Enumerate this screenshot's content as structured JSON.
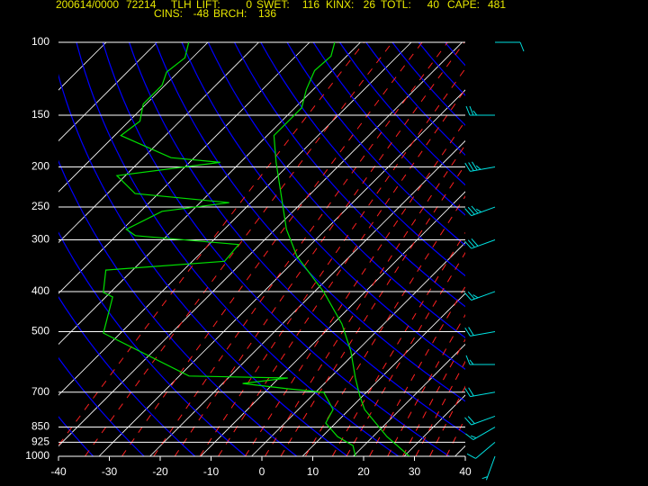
{
  "header": {
    "time": "200614/0000",
    "station_id": "72214",
    "station": "TLH",
    "indices": [
      {
        "label": "LIFT:",
        "value": 0
      },
      {
        "label": "SWET:",
        "value": 116
      },
      {
        "label": "KINX:",
        "value": 26
      },
      {
        "label": "TOTL:",
        "value": 40
      },
      {
        "label": "CAPE:",
        "value": 481
      },
      {
        "label": "CINS:",
        "value": -48
      },
      {
        "label": "BRCH:",
        "value": 136
      }
    ]
  },
  "chart_data": {
    "type": "skewt",
    "xlim": [
      -40,
      40
    ],
    "xticks": [
      -40,
      -30,
      -20,
      -10,
      0,
      10,
      20,
      30,
      40
    ],
    "ylim": [
      1000,
      100
    ],
    "yticks": [
      100,
      150,
      200,
      250,
      300,
      400,
      500,
      700,
      850,
      925,
      1000
    ],
    "log_scale": true,
    "series": [
      {
        "color": "#00e000",
        "pressure": [
          1000,
          896,
          771,
          715,
          647,
          557,
          479,
          402,
          329,
          283,
          195,
          168,
          144,
          130,
          117,
          108,
          100
        ],
        "temperature": [
          29.0,
          20.7,
          11.0,
          7.4,
          3.0,
          -3.2,
          -10.3,
          -20.0,
          -32.4,
          -39.8,
          -55.0,
          -60.7,
          -60.7,
          -63.4,
          -65.5,
          -65.1,
          -67.1
        ]
      },
      {
        "color": "#00e000",
        "pressure": [
          1000,
          942,
          896,
          831,
          771,
          701,
          687,
          667,
          647,
          640,
          504,
          412,
          402,
          355,
          338,
          308,
          293,
          283,
          256,
          244,
          232,
          210,
          195,
          190,
          168,
          155,
          141,
          127,
          118,
          109,
          100
        ],
        "temperature": [
          18.4,
          15.8,
          11.0,
          6.0,
          4.8,
          -0.4,
          -8.1,
          -18.1,
          -10.3,
          -30.1,
          -55.4,
          -60.7,
          -63.4,
          -67.3,
          -45.7,
          -46.2,
          -68.3,
          -71.3,
          -67.8,
          -56.3,
          -76.6,
          -83.7,
          -66.0,
          -76.6,
          -90.8,
          -89.9,
          -92.6,
          -92.6,
          -94.3,
          -93.5,
          -95.8
        ]
      }
    ],
    "winds": {
      "color": "#00e0e0",
      "pressure": [
        1000,
        925,
        850,
        800,
        700,
        600,
        500,
        400,
        300,
        250,
        200,
        150,
        100
      ],
      "direction": [
        200,
        230,
        240,
        250,
        260,
        270,
        260,
        250,
        250,
        250,
        260,
        270,
        90
      ],
      "speed": [
        5,
        10,
        15,
        20,
        20,
        15,
        20,
        25,
        30,
        35,
        35,
        25,
        10
      ]
    }
  }
}
